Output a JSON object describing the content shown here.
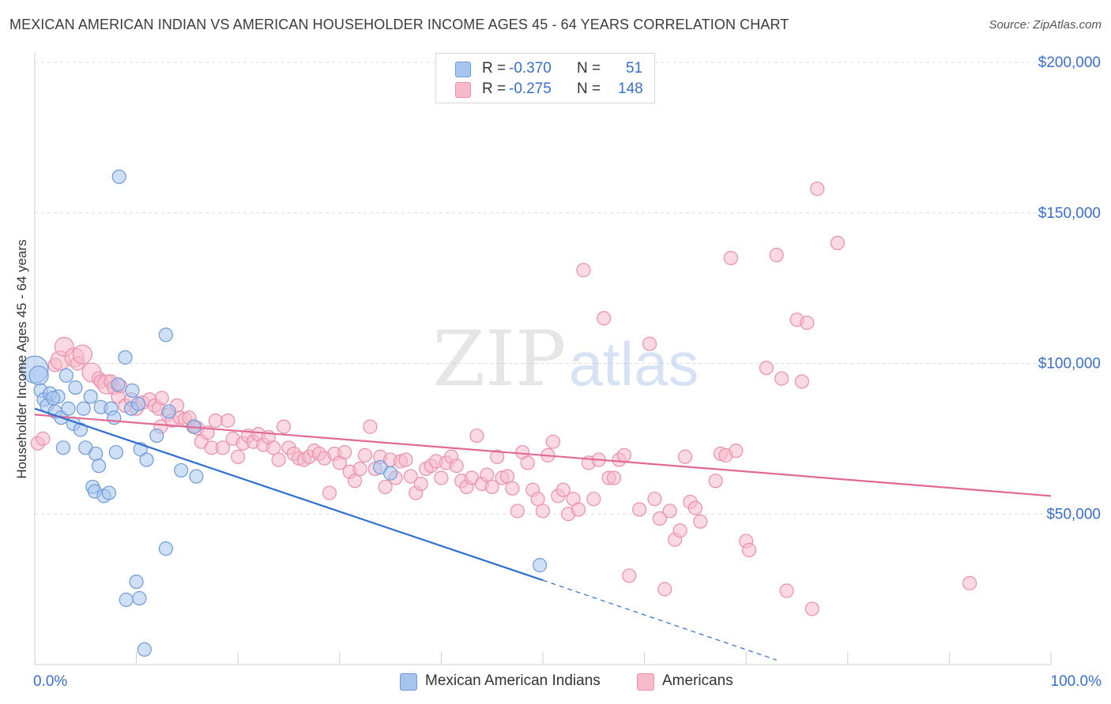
{
  "title": "MEXICAN AMERICAN INDIAN VS AMERICAN HOUSEHOLDER INCOME AGES 45 - 64 YEARS CORRELATION CHART",
  "source": "Source: ZipAtlas.com",
  "watermark": {
    "zip": "ZIP",
    "atlas": "atlas"
  },
  "legend_top": [
    {
      "r_label": "R =",
      "r_value": "-0.370",
      "n_label": "N =",
      "n_value": "51"
    },
    {
      "r_label": "R =",
      "r_value": "-0.275",
      "n_label": "N =",
      "n_value": "148"
    }
  ],
  "legend_bottom": [
    {
      "label": "Mexican American Indians"
    },
    {
      "label": "Americans"
    }
  ],
  "colors": {
    "blue_fill": "#a7c4ef",
    "blue_stroke": "#6f9ad9",
    "blue_line": "#2f6fd0",
    "pink_fill": "#f6bacb",
    "pink_stroke": "#ea90ad",
    "pink_line": "#e06a94",
    "axis_text": "#3a6fcf",
    "grid": "#dddddd"
  },
  "chart_data": {
    "type": "scatter",
    "title": "MEXICAN AMERICAN INDIAN VS AMERICAN HOUSEHOLDER INCOME AGES 45 - 64 YEARS CORRELATION CHART",
    "xlabel": "",
    "ylabel": "Householder Income Ages 45 - 64 years",
    "xlim": [
      0,
      100
    ],
    "ylim": [
      0,
      200000
    ],
    "x_tick_labels": [
      "0.0%",
      "100.0%"
    ],
    "y_ticks": [
      50000,
      100000,
      150000,
      200000
    ],
    "y_tick_labels": [
      "$50,000",
      "$100,000",
      "$150,000",
      "$200,000"
    ],
    "legend_position": "top-center",
    "series": [
      {
        "name": "Mexican American Indians",
        "color": "#a7c4ef",
        "trend": {
          "x0": 0,
          "y0": 85000,
          "x1": 50,
          "y1": 28000,
          "dash_to_x": 73,
          "dash_to_y": 1500
        },
        "points": [
          {
            "x": 0.0,
            "y": 98000,
            "s": 3
          },
          {
            "x": 0.4,
            "y": 96000,
            "s": 2
          },
          {
            "x": 0.6,
            "y": 91000,
            "s": 1
          },
          {
            "x": 0.9,
            "y": 88000,
            "s": 1
          },
          {
            "x": 1.2,
            "y": 86000,
            "s": 1
          },
          {
            "x": 1.5,
            "y": 90000,
            "s": 1
          },
          {
            "x": 2.0,
            "y": 84000,
            "s": 1
          },
          {
            "x": 2.3,
            "y": 89000,
            "s": 1
          },
          {
            "x": 2.6,
            "y": 82000,
            "s": 1
          },
          {
            "x": 2.8,
            "y": 72000,
            "s": 1
          },
          {
            "x": 3.1,
            "y": 96000,
            "s": 1
          },
          {
            "x": 3.3,
            "y": 85000,
            "s": 1
          },
          {
            "x": 3.8,
            "y": 80000,
            "s": 1
          },
          {
            "x": 4.0,
            "y": 92000,
            "s": 1
          },
          {
            "x": 4.5,
            "y": 78000,
            "s": 1
          },
          {
            "x": 4.8,
            "y": 85000,
            "s": 1
          },
          {
            "x": 5.0,
            "y": 72000,
            "s": 1
          },
          {
            "x": 5.5,
            "y": 89000,
            "s": 1
          },
          {
            "x": 6.0,
            "y": 70000,
            "s": 1
          },
          {
            "x": 6.3,
            "y": 66000,
            "s": 1
          },
          {
            "x": 5.7,
            "y": 59000,
            "s": 1
          },
          {
            "x": 5.9,
            "y": 57500,
            "s": 1
          },
          {
            "x": 6.8,
            "y": 56000,
            "s": 1
          },
          {
            "x": 7.3,
            "y": 57000,
            "s": 1
          },
          {
            "x": 6.5,
            "y": 85500,
            "s": 1
          },
          {
            "x": 7.5,
            "y": 85000,
            "s": 1
          },
          {
            "x": 7.8,
            "y": 82000,
            "s": 1
          },
          {
            "x": 8.2,
            "y": 93000,
            "s": 1
          },
          {
            "x": 8.0,
            "y": 70500,
            "s": 1
          },
          {
            "x": 8.3,
            "y": 162000,
            "s": 1
          },
          {
            "x": 8.9,
            "y": 102000,
            "s": 1
          },
          {
            "x": 9.5,
            "y": 85000,
            "s": 1
          },
          {
            "x": 9.6,
            "y": 91000,
            "s": 1
          },
          {
            "x": 10.2,
            "y": 86500,
            "s": 1
          },
          {
            "x": 10.4,
            "y": 71500,
            "s": 1
          },
          {
            "x": 11.0,
            "y": 68000,
            "s": 1
          },
          {
            "x": 12.0,
            "y": 76000,
            "s": 1
          },
          {
            "x": 12.9,
            "y": 109500,
            "s": 1
          },
          {
            "x": 13.2,
            "y": 84000,
            "s": 1
          },
          {
            "x": 14.4,
            "y": 64500,
            "s": 1
          },
          {
            "x": 15.7,
            "y": 79000,
            "s": 1
          },
          {
            "x": 15.9,
            "y": 62500,
            "s": 1
          },
          {
            "x": 10.0,
            "y": 27500,
            "s": 1
          },
          {
            "x": 10.3,
            "y": 22000,
            "s": 1
          },
          {
            "x": 9.0,
            "y": 21500,
            "s": 1
          },
          {
            "x": 10.8,
            "y": 5000,
            "s": 1
          },
          {
            "x": 12.9,
            "y": 38500,
            "s": 1
          },
          {
            "x": 34.0,
            "y": 65500,
            "s": 1
          },
          {
            "x": 35.0,
            "y": 63500,
            "s": 1
          },
          {
            "x": 49.7,
            "y": 33000,
            "s": 1
          },
          {
            "x": 1.8,
            "y": 88500,
            "s": 1
          }
        ]
      },
      {
        "name": "Americans",
        "color": "#f6bacb",
        "trend": {
          "x0": 0,
          "y0": 83000,
          "x1": 100,
          "y1": 56000
        },
        "points": [
          {
            "x": 0.3,
            "y": 73500,
            "s": 1
          },
          {
            "x": 0.8,
            "y": 75000,
            "s": 1
          },
          {
            "x": 2.0,
            "y": 99500,
            "s": 1
          },
          {
            "x": 2.5,
            "y": 101000,
            "s": 2
          },
          {
            "x": 2.9,
            "y": 105500,
            "s": 2
          },
          {
            "x": 3.9,
            "y": 102000,
            "s": 2
          },
          {
            "x": 4.2,
            "y": 100000,
            "s": 1
          },
          {
            "x": 4.7,
            "y": 103000,
            "s": 2
          },
          {
            "x": 5.6,
            "y": 97000,
            "s": 2
          },
          {
            "x": 6.3,
            "y": 95000,
            "s": 1
          },
          {
            "x": 6.5,
            "y": 94000,
            "s": 1
          },
          {
            "x": 7.1,
            "y": 93000,
            "s": 2
          },
          {
            "x": 7.5,
            "y": 94000,
            "s": 1
          },
          {
            "x": 7.8,
            "y": 92000,
            "s": 1
          },
          {
            "x": 8.2,
            "y": 89000,
            "s": 1
          },
          {
            "x": 8.4,
            "y": 92500,
            "s": 1
          },
          {
            "x": 8.9,
            "y": 86000,
            "s": 1
          },
          {
            "x": 9.5,
            "y": 88000,
            "s": 1
          },
          {
            "x": 10.0,
            "y": 85000,
            "s": 1
          },
          {
            "x": 10.6,
            "y": 87000,
            "s": 1
          },
          {
            "x": 11.3,
            "y": 88000,
            "s": 1
          },
          {
            "x": 11.8,
            "y": 86000,
            "s": 1
          },
          {
            "x": 12.2,
            "y": 85000,
            "s": 1
          },
          {
            "x": 12.5,
            "y": 88500,
            "s": 1
          },
          {
            "x": 12.4,
            "y": 79000,
            "s": 1
          },
          {
            "x": 13.1,
            "y": 83000,
            "s": 1
          },
          {
            "x": 13.5,
            "y": 81000,
            "s": 1
          },
          {
            "x": 14.0,
            "y": 86000,
            "s": 1
          },
          {
            "x": 14.3,
            "y": 82000,
            "s": 1
          },
          {
            "x": 14.8,
            "y": 81500,
            "s": 1
          },
          {
            "x": 15.2,
            "y": 82000,
            "s": 1
          },
          {
            "x": 15.6,
            "y": 79000,
            "s": 1
          },
          {
            "x": 16.0,
            "y": 78500,
            "s": 1
          },
          {
            "x": 16.4,
            "y": 74000,
            "s": 1
          },
          {
            "x": 17.0,
            "y": 77000,
            "s": 1
          },
          {
            "x": 17.4,
            "y": 72000,
            "s": 1
          },
          {
            "x": 17.8,
            "y": 81000,
            "s": 1
          },
          {
            "x": 18.5,
            "y": 72000,
            "s": 1
          },
          {
            "x": 19.0,
            "y": 81000,
            "s": 1
          },
          {
            "x": 19.5,
            "y": 75000,
            "s": 1
          },
          {
            "x": 20.0,
            "y": 69000,
            "s": 1
          },
          {
            "x": 20.5,
            "y": 73500,
            "s": 1
          },
          {
            "x": 21.0,
            "y": 76000,
            "s": 1
          },
          {
            "x": 21.5,
            "y": 74000,
            "s": 1
          },
          {
            "x": 22.0,
            "y": 76500,
            "s": 1
          },
          {
            "x": 22.5,
            "y": 73000,
            "s": 1
          },
          {
            "x": 23.0,
            "y": 75500,
            "s": 1
          },
          {
            "x": 23.5,
            "y": 72000,
            "s": 1
          },
          {
            "x": 24.0,
            "y": 68000,
            "s": 1
          },
          {
            "x": 24.5,
            "y": 79000,
            "s": 1
          },
          {
            "x": 25.0,
            "y": 72000,
            "s": 1
          },
          {
            "x": 25.5,
            "y": 70000,
            "s": 1
          },
          {
            "x": 26.0,
            "y": 68500,
            "s": 1
          },
          {
            "x": 26.5,
            "y": 68000,
            "s": 1
          },
          {
            "x": 27.0,
            "y": 69000,
            "s": 1
          },
          {
            "x": 27.5,
            "y": 71000,
            "s": 1
          },
          {
            "x": 28.0,
            "y": 70000,
            "s": 1
          },
          {
            "x": 28.5,
            "y": 68500,
            "s": 1
          },
          {
            "x": 29.0,
            "y": 57000,
            "s": 1
          },
          {
            "x": 29.5,
            "y": 70000,
            "s": 1
          },
          {
            "x": 30.0,
            "y": 67000,
            "s": 1
          },
          {
            "x": 30.5,
            "y": 70500,
            "s": 1
          },
          {
            "x": 31.0,
            "y": 64000,
            "s": 1
          },
          {
            "x": 31.5,
            "y": 61000,
            "s": 1
          },
          {
            "x": 32.0,
            "y": 65000,
            "s": 1
          },
          {
            "x": 32.5,
            "y": 69500,
            "s": 1
          },
          {
            "x": 33.0,
            "y": 79000,
            "s": 1
          },
          {
            "x": 33.5,
            "y": 65000,
            "s": 1
          },
          {
            "x": 34.0,
            "y": 69000,
            "s": 1
          },
          {
            "x": 34.5,
            "y": 59000,
            "s": 1
          },
          {
            "x": 35.0,
            "y": 68000,
            "s": 1
          },
          {
            "x": 35.5,
            "y": 62000,
            "s": 1
          },
          {
            "x": 36.0,
            "y": 67500,
            "s": 1
          },
          {
            "x": 36.5,
            "y": 68000,
            "s": 1
          },
          {
            "x": 37.0,
            "y": 62500,
            "s": 1
          },
          {
            "x": 37.5,
            "y": 57000,
            "s": 1
          },
          {
            "x": 38.0,
            "y": 60000,
            "s": 1
          },
          {
            "x": 38.5,
            "y": 65000,
            "s": 1
          },
          {
            "x": 39.0,
            "y": 66000,
            "s": 1
          },
          {
            "x": 39.5,
            "y": 67500,
            "s": 1
          },
          {
            "x": 40.0,
            "y": 62000,
            "s": 1
          },
          {
            "x": 40.5,
            "y": 67000,
            "s": 1
          },
          {
            "x": 41.0,
            "y": 69000,
            "s": 1
          },
          {
            "x": 41.5,
            "y": 66000,
            "s": 1
          },
          {
            "x": 42.0,
            "y": 61000,
            "s": 1
          },
          {
            "x": 42.5,
            "y": 59000,
            "s": 1
          },
          {
            "x": 43.0,
            "y": 62000,
            "s": 1
          },
          {
            "x": 43.5,
            "y": 76000,
            "s": 1
          },
          {
            "x": 44.0,
            "y": 60000,
            "s": 1
          },
          {
            "x": 44.5,
            "y": 63000,
            "s": 1
          },
          {
            "x": 45.0,
            "y": 59000,
            "s": 1
          },
          {
            "x": 45.5,
            "y": 69000,
            "s": 1
          },
          {
            "x": 46.0,
            "y": 62000,
            "s": 1
          },
          {
            "x": 46.5,
            "y": 62500,
            "s": 1
          },
          {
            "x": 47.0,
            "y": 58500,
            "s": 1
          },
          {
            "x": 47.5,
            "y": 51000,
            "s": 1
          },
          {
            "x": 48.0,
            "y": 70500,
            "s": 1
          },
          {
            "x": 48.5,
            "y": 67000,
            "s": 1
          },
          {
            "x": 49.0,
            "y": 58000,
            "s": 1
          },
          {
            "x": 49.5,
            "y": 55000,
            "s": 1
          },
          {
            "x": 50.0,
            "y": 51000,
            "s": 1
          },
          {
            "x": 50.5,
            "y": 69500,
            "s": 1
          },
          {
            "x": 51.0,
            "y": 74000,
            "s": 1
          },
          {
            "x": 51.5,
            "y": 56000,
            "s": 1
          },
          {
            "x": 52.0,
            "y": 58000,
            "s": 1
          },
          {
            "x": 52.5,
            "y": 50000,
            "s": 1
          },
          {
            "x": 53.0,
            "y": 55000,
            "s": 1
          },
          {
            "x": 53.5,
            "y": 51500,
            "s": 1
          },
          {
            "x": 54.0,
            "y": 131000,
            "s": 1
          },
          {
            "x": 54.5,
            "y": 67000,
            "s": 1
          },
          {
            "x": 55.0,
            "y": 55000,
            "s": 1
          },
          {
            "x": 55.5,
            "y": 68000,
            "s": 1
          },
          {
            "x": 56.0,
            "y": 115000,
            "s": 1
          },
          {
            "x": 56.5,
            "y": 62000,
            "s": 1
          },
          {
            "x": 57.0,
            "y": 62000,
            "s": 1
          },
          {
            "x": 57.5,
            "y": 68000,
            "s": 1
          },
          {
            "x": 58.0,
            "y": 69500,
            "s": 1
          },
          {
            "x": 58.5,
            "y": 29500,
            "s": 1
          },
          {
            "x": 59.5,
            "y": 51500,
            "s": 1
          },
          {
            "x": 60.5,
            "y": 106500,
            "s": 1
          },
          {
            "x": 61.0,
            "y": 55000,
            "s": 1
          },
          {
            "x": 61.5,
            "y": 48500,
            "s": 1
          },
          {
            "x": 62.0,
            "y": 25000,
            "s": 1
          },
          {
            "x": 62.5,
            "y": 51000,
            "s": 1
          },
          {
            "x": 63.0,
            "y": 41500,
            "s": 1
          },
          {
            "x": 63.5,
            "y": 44500,
            "s": 1
          },
          {
            "x": 64.0,
            "y": 69000,
            "s": 1
          },
          {
            "x": 64.5,
            "y": 54000,
            "s": 1
          },
          {
            "x": 65.0,
            "y": 52000,
            "s": 1
          },
          {
            "x": 65.5,
            "y": 47500,
            "s": 1
          },
          {
            "x": 67.0,
            "y": 61000,
            "s": 1
          },
          {
            "x": 67.5,
            "y": 70000,
            "s": 1
          },
          {
            "x": 68.0,
            "y": 69500,
            "s": 1
          },
          {
            "x": 68.5,
            "y": 135000,
            "s": 1
          },
          {
            "x": 69.0,
            "y": 71000,
            "s": 1
          },
          {
            "x": 70.0,
            "y": 41000,
            "s": 1
          },
          {
            "x": 70.3,
            "y": 38000,
            "s": 1
          },
          {
            "x": 72.0,
            "y": 98500,
            "s": 1
          },
          {
            "x": 73.0,
            "y": 136000,
            "s": 1
          },
          {
            "x": 73.5,
            "y": 95000,
            "s": 1
          },
          {
            "x": 74.0,
            "y": 24500,
            "s": 1
          },
          {
            "x": 75.0,
            "y": 114500,
            "s": 1
          },
          {
            "x": 75.5,
            "y": 94000,
            "s": 1
          },
          {
            "x": 76.0,
            "y": 113500,
            "s": 1
          },
          {
            "x": 76.5,
            "y": 18500,
            "s": 1
          },
          {
            "x": 77.0,
            "y": 158000,
            "s": 1
          },
          {
            "x": 79.0,
            "y": 140000,
            "s": 1
          },
          {
            "x": 92.0,
            "y": 27000,
            "s": 1
          }
        ]
      }
    ]
  }
}
